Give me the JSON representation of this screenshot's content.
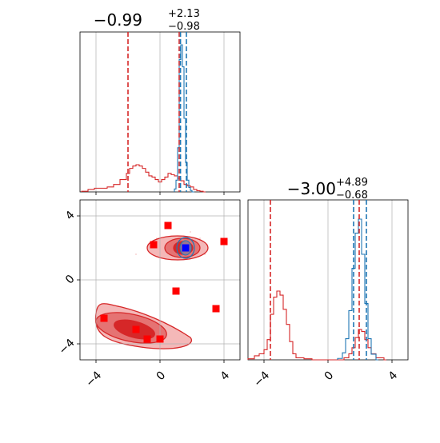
{
  "colors": {
    "red": "#d62728",
    "red_fill_light": "#f4b8b8",
    "red_fill_mid": "#e57373",
    "red_fill_dark": "#d62728",
    "blue": "#1f77b4",
    "marker_red": "#ff0000",
    "marker_blue": "#0000ff",
    "grid": "#b0b0b0",
    "axis": "#000000"
  },
  "chart_data": [
    {
      "type": "histogram",
      "panel": "top-left",
      "title_main": "−0.99",
      "title_sup": "+2.13",
      "title_sub": "−0.98",
      "xlim": [
        -5,
        5
      ],
      "grid": true,
      "series": [
        {
          "name": "",
          "color": "#d62728",
          "x": [
            -4.9,
            -4.5,
            -4.1,
            -3.7,
            -3.3,
            -2.9,
            -2.5,
            -2.1,
            -1.9,
            -1.7,
            -1.5,
            -1.3,
            -1.1,
            -0.9,
            -0.7,
            -0.5,
            -0.3,
            -0.1,
            0.1,
            0.3,
            0.5,
            0.7,
            0.9,
            1.1,
            1.3,
            1.5,
            1.7,
            1.9,
            2.1,
            2.3,
            2.5,
            2.7
          ],
          "values": [
            0.005,
            0.02,
            0.03,
            0.03,
            0.04,
            0.06,
            0.1,
            0.15,
            0.19,
            0.21,
            0.22,
            0.21,
            0.19,
            0.16,
            0.13,
            0.12,
            0.1,
            0.08,
            0.1,
            0.12,
            0.15,
            0.14,
            0.13,
            0.11,
            0.09,
            0.06,
            0.05,
            0.04,
            0.02,
            0.01,
            0.005,
            0.0
          ]
        },
        {
          "name": "",
          "color": "#1f77b4",
          "x": [
            0.9,
            1.0,
            1.1,
            1.2,
            1.3,
            1.4,
            1.5,
            1.6,
            1.7,
            1.8,
            1.9,
            2.0
          ],
          "values": [
            0.02,
            0.08,
            0.3,
            0.9,
            1.0,
            0.85,
            0.5,
            0.2,
            0.08,
            0.03,
            0.01,
            0.0
          ]
        }
      ],
      "vlines": [
        {
          "x": -2.0,
          "color": "#d62728"
        },
        {
          "x": 1.2,
          "color": "#d62728"
        },
        {
          "x": 1.28,
          "color": "#1f77b4"
        },
        {
          "x": 1.65,
          "color": "#1f77b4"
        }
      ]
    },
    {
      "type": "contour",
      "panel": "bottom-left",
      "xlim": [
        -5,
        5
      ],
      "ylim": [
        -5,
        5
      ],
      "grid": true,
      "xtick_labels": [
        "−4",
        "0",
        "4"
      ],
      "ytick_labels": [
        "−4",
        "0",
        "4"
      ],
      "xticks": [
        -4,
        0,
        4
      ],
      "yticks": [
        -4,
        0,
        4
      ],
      "red_markers": [
        {
          "x": 0.5,
          "y": 3.4
        },
        {
          "x": -0.4,
          "y": 2.2
        },
        {
          "x": 4.0,
          "y": 2.4
        },
        {
          "x": 1.0,
          "y": -0.7
        },
        {
          "x": 3.5,
          "y": -1.8
        },
        {
          "x": -3.5,
          "y": -2.4
        },
        {
          "x": -1.5,
          "y": -3.1
        },
        {
          "x": -0.8,
          "y": -3.7
        },
        {
          "x": 0.0,
          "y": -3.7
        }
      ],
      "blue_markers": [
        {
          "x": 1.6,
          "y": 2.0
        }
      ]
    },
    {
      "type": "histogram",
      "panel": "bottom-right",
      "title_main": "−3.00",
      "title_sup": "+4.89",
      "title_sub": "−0.68",
      "xlim": [
        -5,
        5
      ],
      "grid": true,
      "xtick_labels": [
        "−4",
        "0",
        "4"
      ],
      "xticks": [
        -4,
        0,
        4
      ],
      "series": [
        {
          "name": "",
          "color": "#d62728",
          "x": [
            -5.0,
            -4.6,
            -4.3,
            -4.0,
            -3.8,
            -3.6,
            -3.4,
            -3.2,
            -3.0,
            -2.8,
            -2.6,
            -2.4,
            -2.2,
            -2.0,
            -1.5,
            -1.0,
            -0.5,
            0.0,
            0.5,
            1.0,
            1.3,
            1.5,
            1.7,
            1.9,
            2.1,
            2.3,
            2.5,
            2.7,
            3.0,
            3.5
          ],
          "values": [
            0.01,
            0.04,
            0.06,
            0.1,
            0.2,
            0.45,
            0.62,
            0.68,
            0.64,
            0.5,
            0.35,
            0.18,
            0.06,
            0.02,
            0.01,
            0.0,
            0.0,
            0.0,
            0.0,
            0.02,
            0.06,
            0.12,
            0.22,
            0.3,
            0.28,
            0.2,
            0.12,
            0.06,
            0.02,
            0.0
          ]
        },
        {
          "name": "",
          "color": "#1f77b4",
          "x": [
            0.6,
            0.9,
            1.1,
            1.3,
            1.5,
            1.7,
            1.9,
            2.1,
            2.3,
            2.5,
            2.7,
            3.0
          ],
          "values": [
            0.01,
            0.05,
            0.15,
            0.35,
            0.65,
            0.9,
            1.0,
            0.75,
            0.4,
            0.15,
            0.04,
            0.0
          ]
        }
      ],
      "vlines": [
        {
          "x": -3.6,
          "color": "#d62728"
        },
        {
          "x": 1.6,
          "color": "#1f77b4"
        },
        {
          "x": 1.95,
          "color": "#d62728"
        },
        {
          "x": 2.4,
          "color": "#1f77b4"
        }
      ]
    }
  ]
}
